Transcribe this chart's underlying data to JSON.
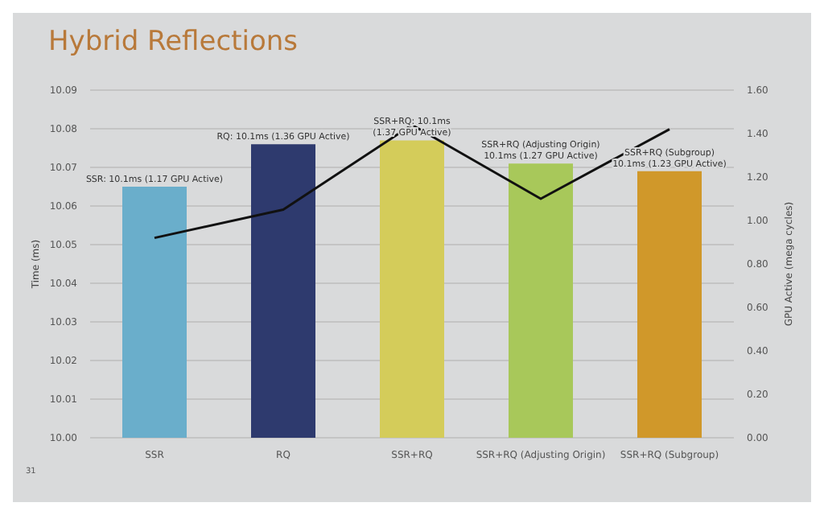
{
  "chart_data": {
    "type": "bar",
    "title": "Hybrid Reflections",
    "ylabel": "Time (ms)",
    "y2label": "GPU Active (mega cycles)",
    "categories": [
      "SSR",
      "RQ",
      "SSR+RQ",
      "SSR+RQ (Adjusting Origin)",
      "SSR+RQ (Subgroup)"
    ],
    "series": [
      {
        "colors": [
          "#6aaecb",
          "#2e3a6e",
          "#d4cc5a",
          "#a8c85a",
          "#d0982a"
        ],
        "values": [
          10.065,
          10.076,
          10.077,
          10.071,
          10.069
        ],
        "value_labels": [
          "SSR: 10.1ms (1.17 GPU Active)",
          "RQ: 10.1ms (1.36 GPU Active)",
          "SSR+RQ: 10.1ms\n(1.37 GPU Active)",
          "SSR+RQ (Adjusting Origin)\n10.1ms (1.27 GPU Active)",
          "SSR+RQ (Subgroup)\n10.1ms (1.23 GPU Active)"
        ]
      },
      {
        "type": "line",
        "axis": "y2",
        "color": "#111111",
        "values": [
          0.92,
          1.05,
          1.44,
          1.1,
          1.42
        ]
      }
    ],
    "ylim": [
      10.0,
      10.09
    ],
    "yticks": [
      {
        "value": 10.0,
        "label": "10.00"
      },
      {
        "value": 10.01,
        "label": "10.01"
      },
      {
        "value": 10.02,
        "label": "10.02"
      },
      {
        "value": 10.03,
        "label": "10.03"
      },
      {
        "value": 10.04,
        "label": "10.04"
      },
      {
        "value": 10.05,
        "label": "10.05"
      },
      {
        "value": 10.06,
        "label": "10.06"
      },
      {
        "value": 10.07,
        "label": "10.07"
      },
      {
        "value": 10.08,
        "label": "10.08"
      },
      {
        "value": 10.09,
        "label": "10.09"
      }
    ],
    "y2lim": [
      0,
      1.6
    ],
    "y2ticks": [
      {
        "value": 0,
        "label": "0.00"
      },
      {
        "value": 0.2,
        "label": "0.20"
      },
      {
        "value": 0.4,
        "label": "0.40"
      },
      {
        "value": 0.6,
        "label": "0.60"
      },
      {
        "value": 0.8,
        "label": "0.80"
      },
      {
        "value": 1.0,
        "label": "1.00"
      },
      {
        "value": 1.2,
        "label": "1.20"
      },
      {
        "value": 1.4,
        "label": "1.40"
      },
      {
        "value": 1.6,
        "label": "1.60"
      }
    ],
    "grid": "y",
    "marker": "none",
    "line_style": "solid",
    "legend": false,
    "annotations": [
      "31"
    ]
  }
}
